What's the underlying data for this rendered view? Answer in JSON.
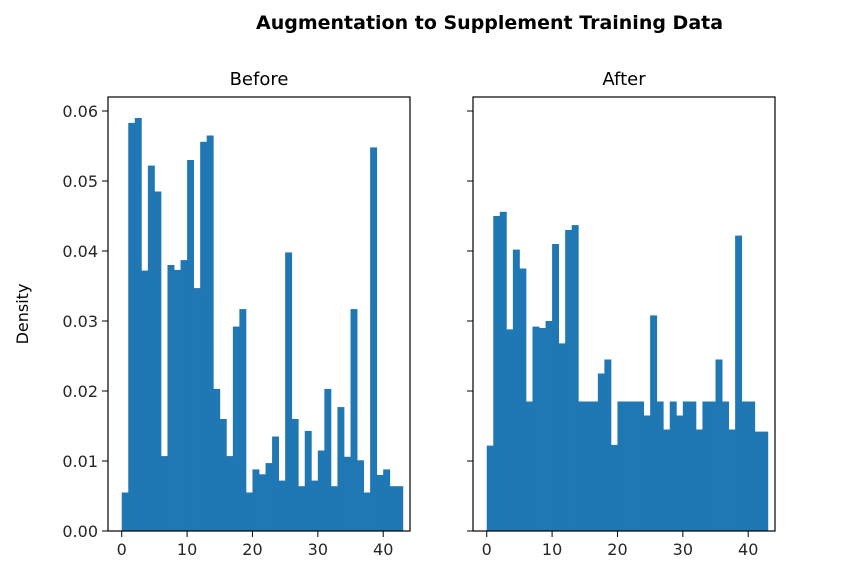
{
  "figure": {
    "suptitle": "Augmentation to Supplement Training Data"
  },
  "colors": {
    "bar": "#1f77b4",
    "axis": "#000000",
    "background": "#ffffff"
  },
  "chart_data": [
    {
      "type": "bar",
      "title": "Before",
      "xlabel": "",
      "ylabel": "Density",
      "xlim": [
        -2.1,
        44.1
      ],
      "ylim": [
        0,
        0.062
      ],
      "xticks": [
        0,
        10,
        20,
        30,
        40
      ],
      "yticks": [
        0.0,
        0.01,
        0.02,
        0.03,
        0.04,
        0.05,
        0.06
      ],
      "ytick_labels": [
        "0.00",
        "0.01",
        "0.02",
        "0.03",
        "0.04",
        "0.05",
        "0.06"
      ],
      "bin_start": 0,
      "bin_width": 1,
      "values": [
        0.0055,
        0.0583,
        0.059,
        0.0372,
        0.0522,
        0.0485,
        0.0107,
        0.038,
        0.0373,
        0.0387,
        0.053,
        0.0347,
        0.0556,
        0.0565,
        0.0203,
        0.016,
        0.0107,
        0.0292,
        0.0317,
        0.0055,
        0.0088,
        0.0081,
        0.0097,
        0.0135,
        0.0072,
        0.0398,
        0.016,
        0.0064,
        0.0143,
        0.0072,
        0.0115,
        0.0203,
        0.0064,
        0.0177,
        0.0106,
        0.0317,
        0.0101,
        0.0055,
        0.0548,
        0.008,
        0.0088,
        0.0064,
        0.0064
      ],
      "grid": false
    },
    {
      "type": "bar",
      "title": "After",
      "xlabel": "",
      "ylabel": "",
      "xlim": [
        -2.1,
        44.1
      ],
      "ylim": [
        0,
        0.062
      ],
      "xticks": [
        0,
        10,
        20,
        30,
        40
      ],
      "yticks": [
        0.0,
        0.01,
        0.02,
        0.03,
        0.04,
        0.05,
        0.06
      ],
      "bin_start": 0,
      "bin_width": 1,
      "values": [
        0.0122,
        0.045,
        0.0456,
        0.0288,
        0.0402,
        0.0375,
        0.0185,
        0.0292,
        0.029,
        0.03,
        0.041,
        0.0268,
        0.043,
        0.0437,
        0.0185,
        0.0185,
        0.0185,
        0.0225,
        0.0245,
        0.0123,
        0.0185,
        0.0185,
        0.0185,
        0.0185,
        0.0165,
        0.0308,
        0.0185,
        0.0145,
        0.0185,
        0.0165,
        0.0185,
        0.0185,
        0.0145,
        0.0185,
        0.0185,
        0.0245,
        0.0185,
        0.0145,
        0.0422,
        0.0185,
        0.0185,
        0.0142,
        0.0142
      ],
      "grid": false
    }
  ]
}
